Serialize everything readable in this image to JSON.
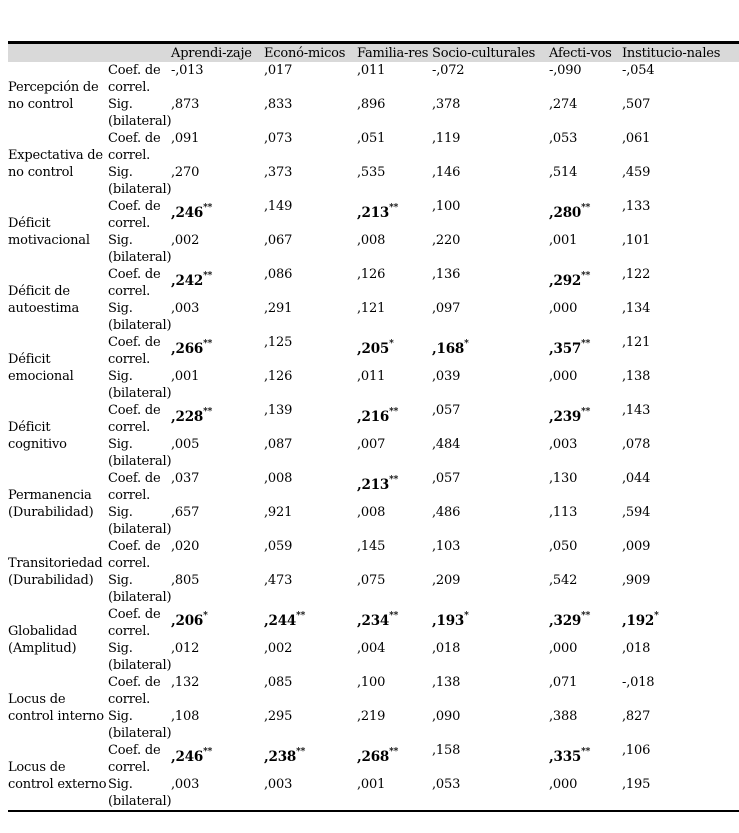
{
  "page": {
    "background": "#ffffff"
  },
  "table": {
    "header_bg": "#d9d9d9",
    "rule_color": "#000000",
    "columns": [
      "Aprendi-zaje",
      "Econó-micos",
      "Familia-res",
      "Socio-culturales",
      "Afecti-vos",
      "Institucio-nales"
    ],
    "measure_labels": {
      "coef": "Coef. de correl.",
      "sig": "Sig. (bilateral)"
    },
    "rows": [
      {
        "label": "Percepción de no control",
        "coef": [
          {
            "v": "-,013",
            "s": ""
          },
          {
            "v": ",017",
            "s": ""
          },
          {
            "v": ",011",
            "s": ""
          },
          {
            "v": "-,072",
            "s": ""
          },
          {
            "v": "-,090",
            "s": ""
          },
          {
            "v": "-,054",
            "s": ""
          }
        ],
        "sig": [
          ",873",
          ",833",
          ",896",
          ",378",
          ",274",
          ",507"
        ]
      },
      {
        "label": "Expectativa de no control",
        "coef": [
          {
            "v": ",091",
            "s": ""
          },
          {
            "v": ",073",
            "s": ""
          },
          {
            "v": ",051",
            "s": ""
          },
          {
            "v": ",119",
            "s": ""
          },
          {
            "v": ",053",
            "s": ""
          },
          {
            "v": ",061",
            "s": ""
          }
        ],
        "sig": [
          ",270",
          ",373",
          ",535",
          ",146",
          ",514",
          ",459"
        ]
      },
      {
        "label": "Déficit motivacional",
        "coef": [
          {
            "v": ",246",
            "s": "**"
          },
          {
            "v": ",149",
            "s": ""
          },
          {
            "v": ",213",
            "s": "**"
          },
          {
            "v": ",100",
            "s": ""
          },
          {
            "v": ",280",
            "s": "**"
          },
          {
            "v": ",133",
            "s": ""
          }
        ],
        "sig": [
          ",002",
          ",067",
          ",008",
          ",220",
          ",001",
          ",101"
        ]
      },
      {
        "label": "Déficit de autoestima",
        "coef": [
          {
            "v": ",242",
            "s": "**"
          },
          {
            "v": ",086",
            "s": ""
          },
          {
            "v": ",126",
            "s": ""
          },
          {
            "v": ",136",
            "s": ""
          },
          {
            "v": ",292",
            "s": "**"
          },
          {
            "v": ",122",
            "s": ""
          }
        ],
        "sig": [
          ",003",
          ",291",
          ",121",
          ",097",
          ",000",
          ",134"
        ]
      },
      {
        "label": "Déficit emocional",
        "coef": [
          {
            "v": ",266",
            "s": "**"
          },
          {
            "v": ",125",
            "s": ""
          },
          {
            "v": ",205",
            "s": "*"
          },
          {
            "v": ",168",
            "s": "*"
          },
          {
            "v": ",357",
            "s": "**"
          },
          {
            "v": ",121",
            "s": ""
          }
        ],
        "sig": [
          ",001",
          ",126",
          ",011",
          ",039",
          ",000",
          ",138"
        ]
      },
      {
        "label": "Déficit cognitivo",
        "coef": [
          {
            "v": ",228",
            "s": "**"
          },
          {
            "v": ",139",
            "s": ""
          },
          {
            "v": ",216",
            "s": "**"
          },
          {
            "v": ",057",
            "s": ""
          },
          {
            "v": ",239",
            "s": "**"
          },
          {
            "v": ",143",
            "s": ""
          }
        ],
        "sig": [
          ",005",
          ",087",
          ",007",
          ",484",
          ",003",
          ",078"
        ]
      },
      {
        "label": "Permanencia (Durabilidad)",
        "coef": [
          {
            "v": ",037",
            "s": ""
          },
          {
            "v": ",008",
            "s": ""
          },
          {
            "v": ",213",
            "s": "**"
          },
          {
            "v": ",057",
            "s": ""
          },
          {
            "v": ",130",
            "s": ""
          },
          {
            "v": ",044",
            "s": ""
          }
        ],
        "sig": [
          ",657",
          ",921",
          ",008",
          ",486",
          ",113",
          ",594"
        ]
      },
      {
        "label": "Transitoriedad (Durabilidad)",
        "coef": [
          {
            "v": ",020",
            "s": ""
          },
          {
            "v": ",059",
            "s": ""
          },
          {
            "v": ",145",
            "s": ""
          },
          {
            "v": ",103",
            "s": ""
          },
          {
            "v": ",050",
            "s": ""
          },
          {
            "v": ",009",
            "s": ""
          }
        ],
        "sig": [
          ",805",
          ",473",
          ",075",
          ",209",
          ",542",
          ",909"
        ]
      },
      {
        "label": "Globalidad (Amplitud)",
        "coef": [
          {
            "v": ",206",
            "s": "*"
          },
          {
            "v": ",244",
            "s": "**"
          },
          {
            "v": ",234",
            "s": "**"
          },
          {
            "v": ",193",
            "s": "*"
          },
          {
            "v": ",329",
            "s": "**"
          },
          {
            "v": ",192",
            "s": "*"
          }
        ],
        "sig": [
          ",012",
          ",002",
          ",004",
          ",018",
          ",000",
          ",018"
        ]
      },
      {
        "label": "Locus de control interno",
        "coef": [
          {
            "v": ",132",
            "s": ""
          },
          {
            "v": ",085",
            "s": ""
          },
          {
            "v": ",100",
            "s": ""
          },
          {
            "v": ",138",
            "s": ""
          },
          {
            "v": ",071",
            "s": ""
          },
          {
            "v": "-,018",
            "s": ""
          }
        ],
        "sig": [
          ",108",
          ",295",
          ",219",
          ",090",
          ",388",
          ",827"
        ]
      },
      {
        "label": "Locus de control externo",
        "coef": [
          {
            "v": ",246",
            "s": "**"
          },
          {
            "v": ",238",
            "s": "**"
          },
          {
            "v": ",268",
            "s": "**"
          },
          {
            "v": ",158",
            "s": ""
          },
          {
            "v": ",335",
            "s": "**"
          },
          {
            "v": ",106",
            "s": ""
          }
        ],
        "sig": [
          ",003",
          ",003",
          ",001",
          ",053",
          ",000",
          ",195"
        ]
      }
    ]
  }
}
